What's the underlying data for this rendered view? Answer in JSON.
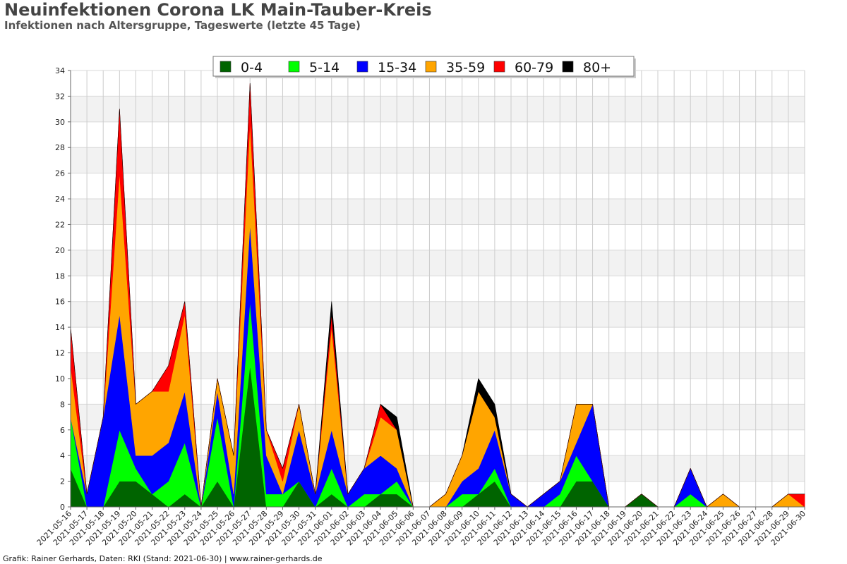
{
  "title": "Neuinfektionen Corona LK Main-Tauber-Kreis",
  "subtitle": "Infektionen nach Altersgruppe, Tageswerte (letzte 45 Tage)",
  "footer": "Grafik: Rainer Gerhards, Daten: RKI (Stand: 2021-06-30) | www.rainer-gerhards.de",
  "chart_data": {
    "type": "area",
    "stacked": true,
    "x": [
      "2021-05-16",
      "2021-05-17",
      "2021-05-18",
      "2021-05-19",
      "2021-05-20",
      "2021-05-21",
      "2021-05-22",
      "2021-05-23",
      "2021-05-24",
      "2021-05-25",
      "2021-05-26",
      "2021-05-27",
      "2021-05-28",
      "2021-05-29",
      "2021-05-30",
      "2021-05-31",
      "2021-06-01",
      "2021-06-02",
      "2021-06-03",
      "2021-06-04",
      "2021-06-05",
      "2021-06-06",
      "2021-06-07",
      "2021-06-08",
      "2021-06-09",
      "2021-06-10",
      "2021-06-11",
      "2021-06-12",
      "2021-06-13",
      "2021-06-14",
      "2021-06-15",
      "2021-06-16",
      "2021-06-17",
      "2021-06-18",
      "2021-06-19",
      "2021-06-20",
      "2021-06-21",
      "2021-06-22",
      "2021-06-23",
      "2021-06-24",
      "2021-06-25",
      "2021-06-26",
      "2021-06-27",
      "2021-06-28",
      "2021-06-29",
      "2021-06-30"
    ],
    "ylim": [
      0,
      34
    ],
    "yticks": [
      0,
      2,
      4,
      6,
      8,
      10,
      12,
      14,
      16,
      18,
      20,
      22,
      24,
      26,
      28,
      30,
      32,
      34
    ],
    "legend_position": "top-center",
    "grid": true,
    "series": [
      {
        "name": "0-4",
        "color": "#006400",
        "values": [
          3,
          0,
          0,
          2,
          2,
          1,
          0,
          1,
          0,
          2,
          0,
          11,
          0,
          0,
          2,
          0,
          1,
          0,
          0,
          1,
          1,
          0,
          0,
          0,
          0,
          1,
          2,
          0,
          0,
          0,
          0,
          2,
          2,
          0,
          0,
          1,
          0,
          0,
          0,
          0,
          0,
          0,
          0,
          0,
          0,
          0
        ]
      },
      {
        "name": "5-14",
        "color": "#00ff00",
        "values": [
          4,
          0,
          0,
          4,
          1,
          0,
          2,
          4,
          0,
          5,
          0,
          5,
          1,
          1,
          0,
          0,
          2,
          0,
          1,
          0,
          1,
          0,
          0,
          0,
          1,
          0,
          1,
          0,
          0,
          0,
          1,
          2,
          0,
          0,
          0,
          0,
          0,
          0,
          1,
          0,
          0,
          0,
          0,
          0,
          0,
          0
        ]
      },
      {
        "name": "15-34",
        "color": "#0000ff",
        "values": [
          0,
          1,
          7,
          9,
          1,
          3,
          3,
          4,
          0,
          2,
          1,
          6,
          3,
          0,
          4,
          1,
          3,
          1,
          2,
          3,
          1,
          0,
          0,
          0,
          1,
          2,
          3,
          1,
          0,
          1,
          1,
          1,
          6,
          0,
          0,
          0,
          0,
          0,
          2,
          0,
          0,
          0,
          0,
          0,
          0,
          0
        ]
      },
      {
        "name": "35-59",
        "color": "#ffa500",
        "values": [
          4,
          0,
          0,
          11,
          4,
          5,
          4,
          6,
          0,
          1,
          3,
          8,
          2,
          1,
          2,
          0,
          8,
          0,
          0,
          3,
          3,
          0,
          0,
          1,
          2,
          6,
          1,
          0,
          0,
          0,
          0,
          3,
          0,
          0,
          0,
          0,
          0,
          0,
          0,
          0,
          1,
          0,
          0,
          0,
          1,
          0
        ]
      },
      {
        "name": "60-79",
        "color": "#ff0000",
        "values": [
          3,
          0,
          0,
          5,
          0,
          0,
          2,
          1,
          0,
          0,
          0,
          3,
          0,
          1,
          0,
          0,
          1,
          0,
          0,
          1,
          0,
          0,
          0,
          0,
          0,
          0,
          0,
          0,
          0,
          0,
          0,
          0,
          0,
          0,
          0,
          0,
          0,
          0,
          0,
          0,
          0,
          0,
          0,
          0,
          0,
          1
        ]
      },
      {
        "name": "80+",
        "color": "#000000",
        "values": [
          0,
          0,
          0,
          0,
          0,
          0,
          0,
          0,
          0,
          0,
          0,
          0,
          0,
          0,
          0,
          0,
          1,
          0,
          0,
          0,
          1,
          0,
          0,
          0,
          0,
          1,
          1,
          0,
          0,
          0,
          0,
          0,
          0,
          0,
          0,
          0,
          0,
          0,
          0,
          0,
          0,
          0,
          0,
          0,
          0,
          0
        ]
      }
    ]
  }
}
